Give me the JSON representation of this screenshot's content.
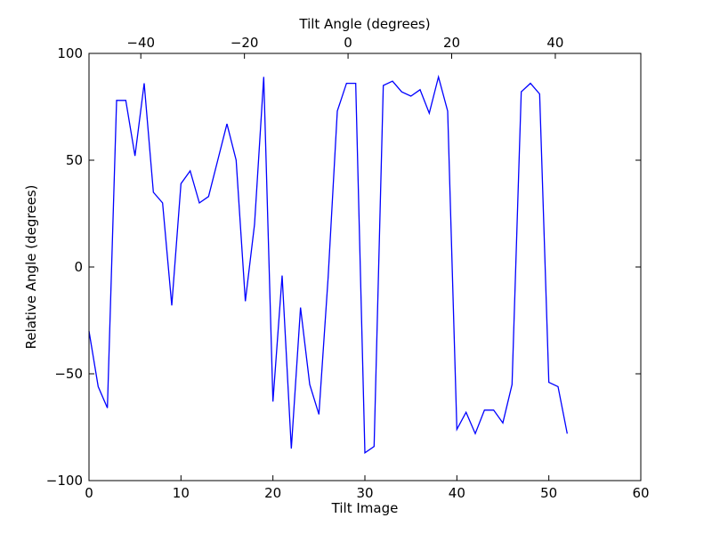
{
  "chart_data": {
    "type": "line",
    "title": "",
    "xlabel": "Tilt Image",
    "ylabel": "Relative Angle (degrees)",
    "top_xlabel": "Tilt Angle (degrees)",
    "xlim": [
      0,
      60
    ],
    "ylim": [
      -100,
      100
    ],
    "top_xlim": [
      -50,
      56.5
    ],
    "xticks": [
      0,
      10,
      20,
      30,
      40,
      50,
      60
    ],
    "yticks": [
      -100,
      -50,
      0,
      50,
      100
    ],
    "top_xticks": [
      -40,
      -20,
      0,
      20,
      40
    ],
    "grid": false,
    "legend": "none",
    "series": [
      {
        "color": "#0000ff",
        "x": [
          0,
          1,
          2,
          3,
          4,
          5,
          6,
          7,
          8,
          9,
          10,
          11,
          12,
          13,
          14,
          15,
          16,
          17,
          18,
          19,
          20,
          21,
          22,
          23,
          24,
          25,
          26,
          27,
          28,
          29,
          30,
          31,
          32,
          33,
          34,
          35,
          36,
          37,
          38,
          39,
          40,
          41,
          42,
          43,
          44,
          45,
          46,
          47,
          48,
          49,
          50,
          51,
          52
        ],
        "values": [
          -30,
          -56,
          -66,
          78,
          78,
          52,
          86,
          35,
          30,
          -18,
          39,
          45,
          30,
          33,
          50,
          67,
          50,
          -16,
          20,
          89,
          -63,
          -4,
          -85,
          -19,
          -55,
          -69,
          -5,
          73,
          86,
          86,
          -87,
          -84,
          85,
          87,
          82,
          80,
          83,
          72,
          89,
          73,
          -76,
          -68,
          -78,
          -67,
          -67,
          -73,
          -55,
          82,
          86,
          81,
          -54,
          -56,
          -78
        ]
      }
    ]
  }
}
